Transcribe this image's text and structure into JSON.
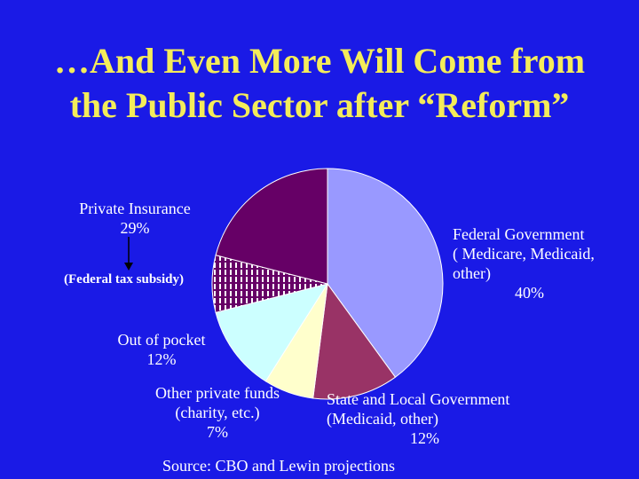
{
  "title": {
    "line1": "…And Even More Will Come from",
    "line2": "the Public Sector after “Reform”"
  },
  "chart_data": {
    "type": "pie",
    "title": "…And Even More Will Come from the Public Sector after “Reform”",
    "slices": [
      {
        "name": "Federal Government",
        "value": 40,
        "color": "#9999ff"
      },
      {
        "name": "State and Local Government",
        "value": 12,
        "color": "#993366"
      },
      {
        "name": "Other private funds",
        "value": 7,
        "color": "#ffffcc"
      },
      {
        "name": "Out of pocket",
        "value": 12,
        "color": "#ccffff"
      },
      {
        "name": "Federal tax subsidy",
        "value": 8,
        "color": "#660066",
        "pattern": "hatched"
      },
      {
        "name": "Private Insurance",
        "value": 21,
        "color": "#660066"
      }
    ]
  },
  "labels": {
    "federal_line1": "Federal Government",
    "federal_line2": "( Medicare, Medicaid,",
    "federal_line3": "other)",
    "federal_pct": "40%",
    "state_line1": "State and Local Government",
    "state_line2": "(Medicaid, other)",
    "state_pct": "12%",
    "other_line1": "Other private funds",
    "other_line2": "(charity, etc.)",
    "other_pct": "7%",
    "oop_line1": "Out of pocket",
    "oop_pct": "12%",
    "private_line1": "Private Insurance",
    "private_pct": "29%",
    "subsidy": "(Federal tax subsidy)"
  },
  "source": "Source: CBO and Lewin projections"
}
